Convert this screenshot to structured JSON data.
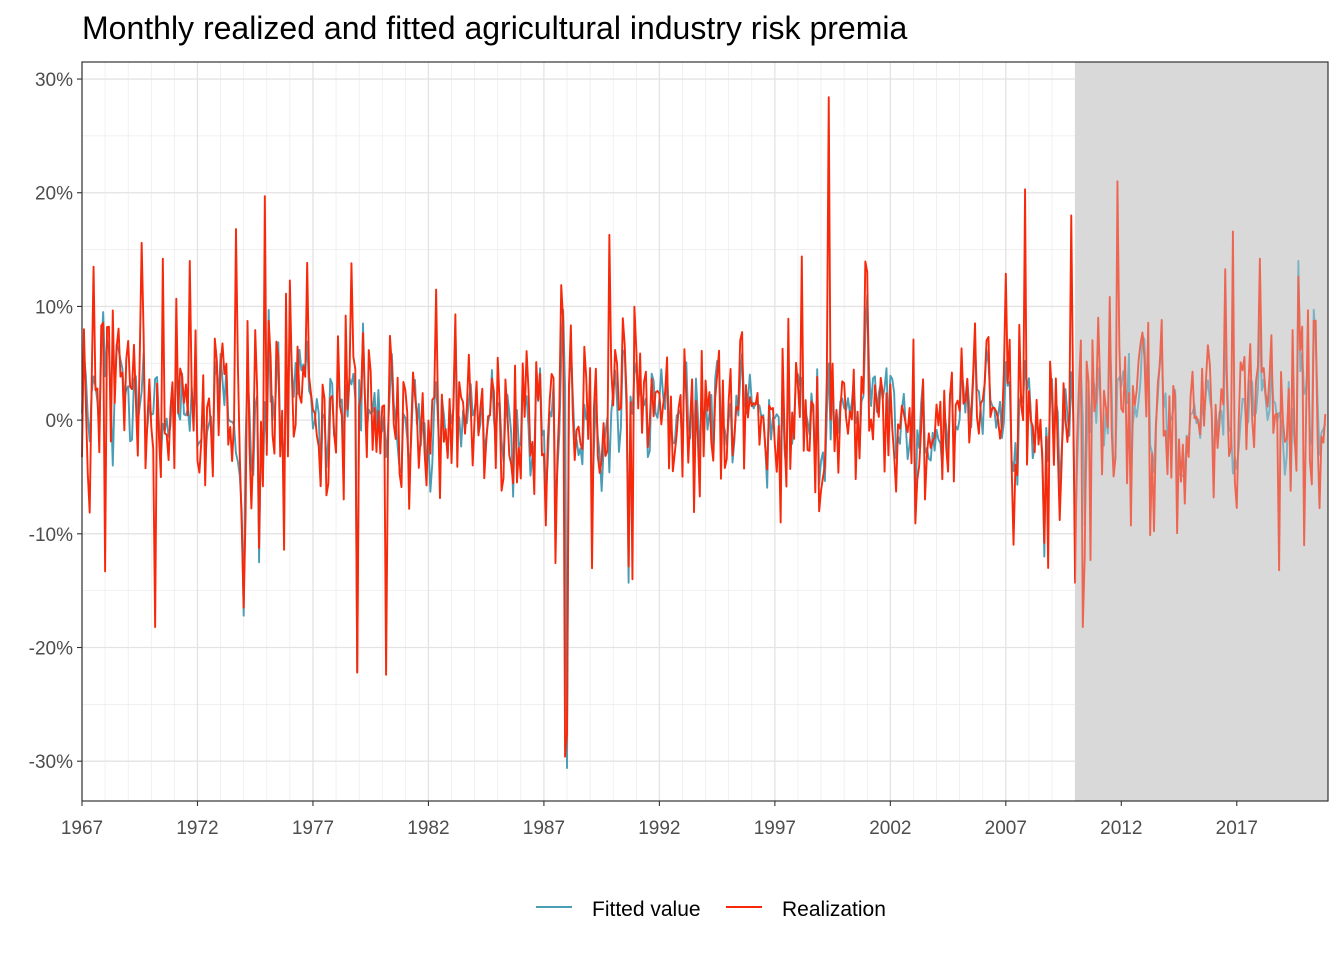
{
  "chart_data": {
    "type": "line",
    "title": "Monthly realized and fitted agricultural industry risk premia",
    "xlabel": "",
    "ylabel": "",
    "x_start": "1967-01",
    "x_end": "2020-12",
    "xlim_years": [
      1967,
      2020.95
    ],
    "ylim": [
      -0.335,
      0.315
    ],
    "y_ticks": [
      -0.3,
      -0.2,
      -0.1,
      0.0,
      0.1,
      0.2,
      0.3
    ],
    "y_tick_labels": [
      "-30%",
      "-20%",
      "-10%",
      "0%",
      "10%",
      "20%",
      "30%"
    ],
    "x_ticks": [
      1967,
      1972,
      1977,
      1982,
      1987,
      1992,
      1997,
      2002,
      2007,
      2012,
      2017
    ],
    "x_tick_labels": [
      "1967",
      "1972",
      "1977",
      "1982",
      "1987",
      "1992",
      "1997",
      "2002",
      "2007",
      "2012",
      "2017"
    ],
    "grid": true,
    "shaded_period": {
      "from": 2010.0,
      "to": 2020.95
    },
    "legend": {
      "position": "bottom",
      "entries": [
        "Fitted value",
        "Realization"
      ]
    },
    "series": [
      {
        "name": "Fitted value",
        "color": "#4a9db5",
        "peaks": [
          [
            1967.6,
            0.03
          ],
          [
            1967.9,
            0.095
          ],
          [
            1968.3,
            -0.04
          ],
          [
            1974.0,
            -0.172
          ],
          [
            1974.7,
            -0.125
          ],
          [
            1975.1,
            0.097
          ],
          [
            1978.9,
            -0.222
          ],
          [
            1979.2,
            0.085
          ],
          [
            1987.8,
            0.097
          ],
          [
            1988.0,
            -0.306
          ],
          [
            1990.7,
            -0.143
          ],
          [
            1999.3,
            0.05
          ],
          [
            2003.1,
            -0.088
          ],
          [
            2008.7,
            -0.12
          ],
          [
            2019.7,
            0.14
          ],
          [
            2020.3,
            0.097
          ]
        ]
      },
      {
        "name": "Realization",
        "color": "#f8280a",
        "peaks": [
          [
            1967.1,
            0.08
          ],
          [
            1967.5,
            0.135
          ],
          [
            1968.0,
            -0.133
          ],
          [
            1969.6,
            0.156
          ],
          [
            1970.2,
            -0.182
          ],
          [
            1970.5,
            0.142
          ],
          [
            1971.7,
            0.14
          ],
          [
            1973.7,
            0.168
          ],
          [
            1974.0,
            -0.165
          ],
          [
            1974.9,
            0.197
          ],
          [
            1978.7,
            0.138
          ],
          [
            1978.9,
            -0.222
          ],
          [
            1980.2,
            -0.224
          ],
          [
            1987.9,
            -0.296
          ],
          [
            1988.0,
            -0.16
          ],
          [
            1989.8,
            0.163
          ],
          [
            1990.8,
            -0.14
          ],
          [
            1998.2,
            0.144
          ],
          [
            1999.3,
            0.284
          ],
          [
            2007.8,
            0.203
          ],
          [
            2008.8,
            -0.13
          ],
          [
            2009.8,
            0.18
          ],
          [
            2010.3,
            -0.182
          ],
          [
            2011.8,
            0.21
          ],
          [
            2016.8,
            0.166
          ],
          [
            2018.8,
            -0.132
          ],
          [
            2019.9,
            -0.11
          ],
          [
            2020.9,
            0.126
          ]
        ]
      }
    ]
  },
  "legend_labels": {
    "fitted": "Fitted value",
    "realization": "Realization"
  }
}
